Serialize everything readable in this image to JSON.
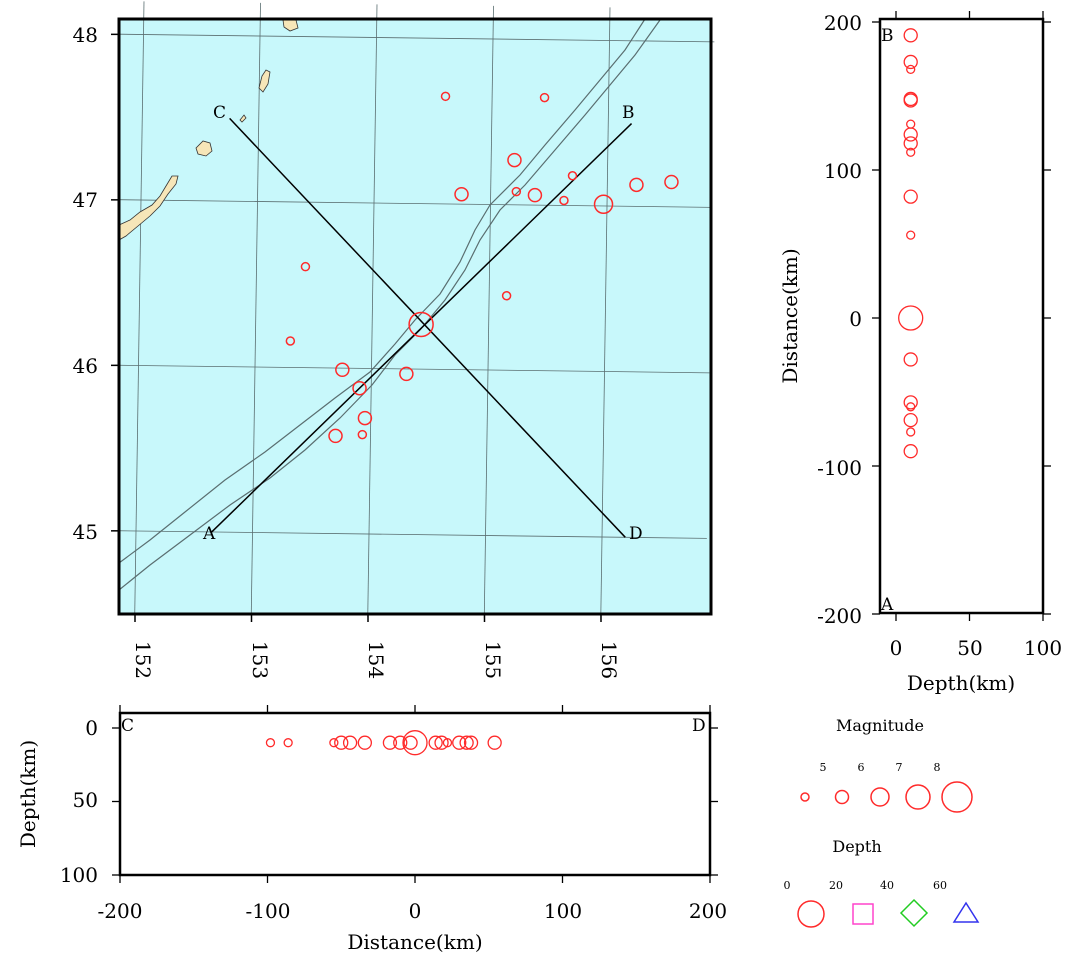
{
  "colors": {
    "sea": "#c8f8fb",
    "land": "#f6e6b8",
    "event": "#ff2a2a",
    "grid": "#5a6e70",
    "trench": "#5a6e70",
    "profile_line": "#000000",
    "depth_0": "#ff2a2a",
    "depth_20": "#ff44cc",
    "depth_40": "#22cc22",
    "depth_60": "#3333ee"
  },
  "map": {
    "lon_ticks": [
      "152",
      "153",
      "154",
      "155",
      "156"
    ],
    "lat_ticks": [
      "48",
      "47",
      "46",
      "45"
    ],
    "profile_labels": {
      "A": "A",
      "B": "B",
      "C": "C",
      "D": "D"
    },
    "profiles": [
      {
        "name": "A-B",
        "start": {
          "lon": 152.65,
          "lat": 45.0
        },
        "end": {
          "lon": 156.2,
          "lat": 47.5
        }
      },
      {
        "name": "C-D",
        "start": {
          "lon": 152.75,
          "lat": 47.5
        },
        "end": {
          "lon": 156.2,
          "lat": 45.0
        }
      }
    ],
    "events": [
      {
        "lon": 154.6,
        "lat": 47.65,
        "mag": 5
      },
      {
        "lon": 155.45,
        "lat": 47.65,
        "mag": 5
      },
      {
        "lon": 155.2,
        "lat": 47.27,
        "mag": 6
      },
      {
        "lon": 155.7,
        "lat": 47.18,
        "mag": 5
      },
      {
        "lon": 154.75,
        "lat": 47.06,
        "mag": 6
      },
      {
        "lon": 155.22,
        "lat": 47.08,
        "mag": 5
      },
      {
        "lon": 155.38,
        "lat": 47.06,
        "mag": 6
      },
      {
        "lon": 155.63,
        "lat": 47.03,
        "mag": 5
      },
      {
        "lon": 155.97,
        "lat": 47.01,
        "mag": 7
      },
      {
        "lon": 156.25,
        "lat": 47.13,
        "mag": 6
      },
      {
        "lon": 156.55,
        "lat": 47.15,
        "mag": 6
      },
      {
        "lon": 153.42,
        "lat": 46.61,
        "mag": 5
      },
      {
        "lon": 155.15,
        "lat": 46.45,
        "mag": 5
      },
      {
        "lon": 154.42,
        "lat": 46.27,
        "mag": 8
      },
      {
        "lon": 153.3,
        "lat": 46.16,
        "mag": 5
      },
      {
        "lon": 153.75,
        "lat": 45.99,
        "mag": 6
      },
      {
        "lon": 154.3,
        "lat": 45.97,
        "mag": 6
      },
      {
        "lon": 153.9,
        "lat": 45.88,
        "mag": 6
      },
      {
        "lon": 153.95,
        "lat": 45.7,
        "mag": 6
      },
      {
        "lon": 153.7,
        "lat": 45.59,
        "mag": 6
      },
      {
        "lon": 153.93,
        "lat": 45.6,
        "mag": 5
      }
    ]
  },
  "profile_ab": {
    "y_ticks": [
      "200",
      "100",
      "0",
      "-100",
      "-200"
    ],
    "x_ticks": [
      "0",
      "50",
      "100"
    ],
    "xlabel": "Depth(km)",
    "ylabel": "Distance(km)",
    "top_label": "B",
    "bottom_label": "A",
    "events": [
      {
        "depth": 10,
        "distance": 191,
        "mag": 6
      },
      {
        "depth": 10,
        "distance": 173,
        "mag": 6
      },
      {
        "depth": 10,
        "distance": 168,
        "mag": 5
      },
      {
        "depth": 10,
        "distance": 148,
        "mag": 6
      },
      {
        "depth": 10,
        "distance": 147,
        "mag": 6
      },
      {
        "depth": 10,
        "distance": 131,
        "mag": 5
      },
      {
        "depth": 10,
        "distance": 124,
        "mag": 6
      },
      {
        "depth": 10,
        "distance": 118,
        "mag": 6
      },
      {
        "depth": 10,
        "distance": 112,
        "mag": 5
      },
      {
        "depth": 10,
        "distance": 82,
        "mag": 6
      },
      {
        "depth": 10,
        "distance": 56,
        "mag": 5
      },
      {
        "depth": 10,
        "distance": 0,
        "mag": 8
      },
      {
        "depth": 10,
        "distance": -28,
        "mag": 6
      },
      {
        "depth": 10,
        "distance": -57,
        "mag": 6
      },
      {
        "depth": 10,
        "distance": -60,
        "mag": 5
      },
      {
        "depth": 10,
        "distance": -69,
        "mag": 6
      },
      {
        "depth": 10,
        "distance": -77,
        "mag": 5
      },
      {
        "depth": 10,
        "distance": -90,
        "mag": 6
      }
    ]
  },
  "profile_cd": {
    "x_ticks": [
      "-200",
      "-100",
      "0",
      "100",
      "200"
    ],
    "y_ticks": [
      "0",
      "50",
      "100"
    ],
    "xlabel": "Distance(km)",
    "ylabel": "Depth(km)",
    "left_label": "C",
    "right_label": "D",
    "events": [
      {
        "distance": -98,
        "depth": 10,
        "mag": 5
      },
      {
        "distance": -86,
        "depth": 10,
        "mag": 5
      },
      {
        "distance": -55,
        "depth": 10,
        "mag": 5
      },
      {
        "distance": -50,
        "depth": 10,
        "mag": 6
      },
      {
        "distance": -44,
        "depth": 10,
        "mag": 6
      },
      {
        "distance": -34,
        "depth": 10,
        "mag": 6
      },
      {
        "distance": -17,
        "depth": 10,
        "mag": 6
      },
      {
        "distance": -10,
        "depth": 10,
        "mag": 6
      },
      {
        "distance": -3,
        "depth": 10,
        "mag": 6
      },
      {
        "distance": 0,
        "depth": 10,
        "mag": 8
      },
      {
        "distance": 14,
        "depth": 10,
        "mag": 6
      },
      {
        "distance": 18,
        "depth": 10,
        "mag": 6
      },
      {
        "distance": 22,
        "depth": 10,
        "mag": 5
      },
      {
        "distance": 30,
        "depth": 10,
        "mag": 6
      },
      {
        "distance": 35,
        "depth": 10,
        "mag": 6
      },
      {
        "distance": 38,
        "depth": 10,
        "mag": 6
      },
      {
        "distance": 54,
        "depth": 10,
        "mag": 6
      }
    ]
  },
  "legend": {
    "magnitude_title": "Magnitude",
    "magnitudes": [
      {
        "label": "5",
        "mag": 5
      },
      {
        "label": "6",
        "mag": 6
      },
      {
        "label": "7",
        "mag": 7
      },
      {
        "label": "8",
        "mag": 8
      },
      {
        "label": "",
        "mag": 9
      }
    ],
    "depth_title": "Depth",
    "depth_labels": [
      "0",
      "20",
      "40",
      "60"
    ],
    "depth_symbols": [
      {
        "shape": "circle",
        "color_key": "depth_0"
      },
      {
        "shape": "square",
        "color_key": "depth_20"
      },
      {
        "shape": "diamond",
        "color_key": "depth_40"
      },
      {
        "shape": "triangle",
        "color_key": "depth_60"
      }
    ]
  }
}
